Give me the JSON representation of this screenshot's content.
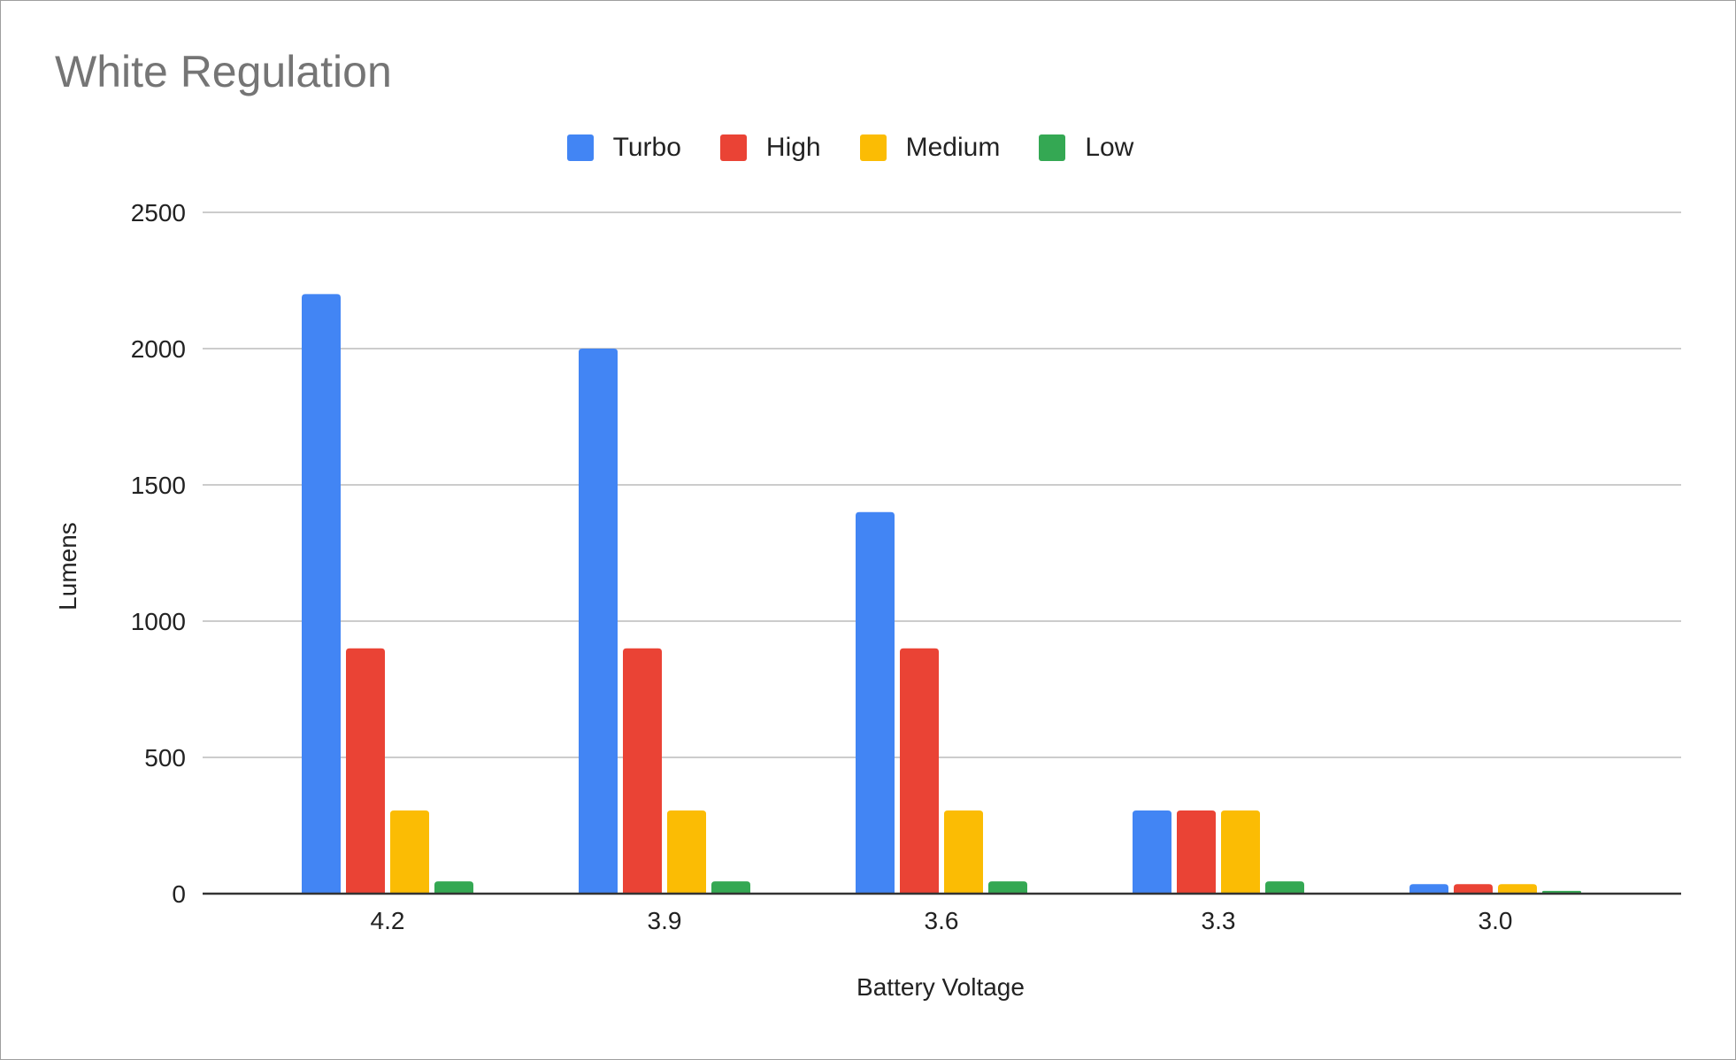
{
  "chart_data": {
    "type": "bar",
    "title": "White Regulation",
    "xlabel": "Battery Voltage",
    "ylabel": "Lumens",
    "categories": [
      "4.2",
      "3.9",
      "3.6",
      "3.3",
      "3.0"
    ],
    "ylim": [
      0,
      2500
    ],
    "yticks": [
      "0",
      "500",
      "1000",
      "1500",
      "2000",
      "2500"
    ],
    "grid": true,
    "legend_position": "top-center",
    "series": [
      {
        "name": "Turbo",
        "color": "#4285f4",
        "values": [
          2200,
          2000,
          1400,
          305,
          35
        ]
      },
      {
        "name": "High",
        "color": "#ea4335",
        "values": [
          900,
          900,
          900,
          305,
          35
        ]
      },
      {
        "name": "Medium",
        "color": "#fbbc04",
        "values": [
          305,
          305,
          305,
          305,
          35
        ]
      },
      {
        "name": "Low",
        "color": "#34a853",
        "values": [
          45,
          45,
          45,
          45,
          10
        ]
      }
    ]
  }
}
